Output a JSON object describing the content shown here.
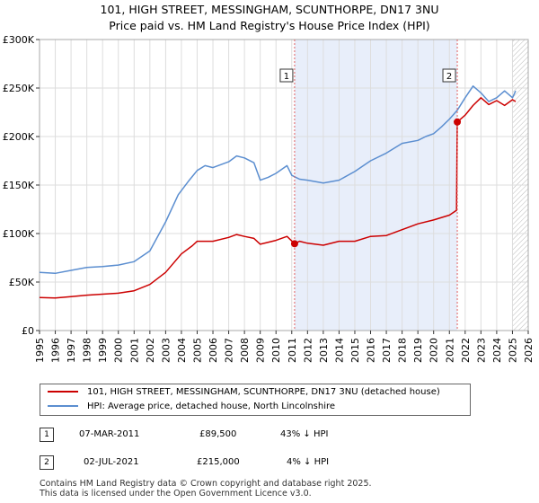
{
  "chart_data": {
    "type": "line",
    "title": "101, HIGH STREET, MESSINGHAM, SCUNTHORPE, DN17 3NU",
    "subtitle": "Price paid vs. HM Land Registry's House Price Index (HPI)",
    "xlim": [
      1995,
      2026
    ],
    "ylim": [
      0,
      300000
    ],
    "x_ticks": [
      "1995",
      "1996",
      "1997",
      "1998",
      "1999",
      "2000",
      "2001",
      "2002",
      "2003",
      "2004",
      "2005",
      "2006",
      "2007",
      "2008",
      "2009",
      "2010",
      "2011",
      "2012",
      "2013",
      "2014",
      "2015",
      "2016",
      "2017",
      "2018",
      "2019",
      "2020",
      "2021",
      "2022",
      "2023",
      "2024",
      "2025",
      "2026"
    ],
    "y_ticks": [
      {
        "value": 0,
        "label": "£0"
      },
      {
        "value": 50000,
        "label": "£50K"
      },
      {
        "value": 100000,
        "label": "£100K"
      },
      {
        "value": 150000,
        "label": "£150K"
      },
      {
        "value": 200000,
        "label": "£200K"
      },
      {
        "value": 250000,
        "label": "£250K"
      },
      {
        "value": 300000,
        "label": "£300K"
      }
    ],
    "grid": true,
    "highlight_range": [
      2011.18,
      2021.5
    ],
    "hatch_from": 2025.0,
    "series": [
      {
        "name": "101, HIGH STREET, MESSINGHAM, SCUNTHORPE, DN17 3NU (detached house)",
        "color": "#cc0000",
        "x": [
          1995,
          1996,
          1997,
          1998,
          1999,
          2000,
          2001,
          2002,
          2003,
          2004,
          2004.7,
          2005,
          2006,
          2007,
          2007.5,
          2008,
          2008.6,
          2009,
          2010,
          2010.7,
          2011.18,
          2011.5,
          2012,
          2013,
          2014,
          2015,
          2016,
          2017,
          2018,
          2019,
          2020,
          2021,
          2021.45,
          2021.5,
          2022,
          2022.5,
          2023,
          2023.5,
          2024,
          2024.5,
          2025,
          2025.2
        ],
        "y": [
          34000,
          33500,
          35000,
          36500,
          37500,
          38500,
          41000,
          47500,
          60000,
          79000,
          87500,
          92000,
          92000,
          96000,
          99000,
          97000,
          95000,
          89000,
          93000,
          97000,
          89500,
          92000,
          90000,
          88000,
          92000,
          92000,
          97000,
          98000,
          104000,
          110000,
          114000,
          119000,
          124000,
          215000,
          222000,
          232000,
          240000,
          233000,
          237000,
          232000,
          238000,
          236000
        ]
      },
      {
        "name": "HPI: Average price, detached house, North Lincolnshire",
        "color": "#5b8ed0",
        "x": [
          1995,
          1996,
          1997,
          1998,
          1999,
          2000,
          2001,
          2002,
          2003,
          2003.8,
          2004.5,
          2005,
          2005.5,
          2006,
          2007,
          2007.5,
          2008,
          2008.6,
          2009,
          2009.5,
          2010,
          2010.7,
          2011,
          2011.5,
          2012,
          2013,
          2014,
          2015,
          2016,
          2017,
          2018,
          2019,
          2019.5,
          2020,
          2020.5,
          2021,
          2021.5,
          2022,
          2022.5,
          2023,
          2023.5,
          2024,
          2024.5,
          2025,
          2025.2
        ],
        "y": [
          60000,
          59000,
          62000,
          65000,
          66000,
          67500,
          71000,
          82000,
          112000,
          140000,
          155000,
          165000,
          170000,
          168000,
          174000,
          180000,
          178000,
          173000,
          155000,
          158000,
          162000,
          170000,
          160000,
          156000,
          155000,
          152000,
          155000,
          164000,
          175000,
          183000,
          193000,
          196000,
          200000,
          203000,
          210000,
          218000,
          227000,
          240000,
          252000,
          245000,
          236000,
          240000,
          247000,
          240000,
          247000
        ]
      }
    ],
    "sales": [
      {
        "label": "1",
        "x": 2011.18,
        "y": 89500
      },
      {
        "label": "2",
        "x": 2021.5,
        "y": 215000
      }
    ]
  },
  "legend": {
    "property_label": "101, HIGH STREET, MESSINGHAM, SCUNTHORPE, DN17 3NU (detached house)",
    "hpi_label": "HPI: Average price, detached house, North Lincolnshire",
    "property_color": "#cc0000",
    "hpi_color": "#5b8ed0"
  },
  "transactions": [
    {
      "num": "1",
      "date": "07-MAR-2011",
      "price": "£89,500",
      "hpi": "43% ↓ HPI"
    },
    {
      "num": "2",
      "date": "02-JUL-2021",
      "price": "£215,000",
      "hpi": "4% ↓ HPI"
    }
  ],
  "footer": {
    "line1": "Contains HM Land Registry data © Crown copyright and database right 2025.",
    "line2": "This data is licensed under the Open Government Licence v3.0."
  }
}
